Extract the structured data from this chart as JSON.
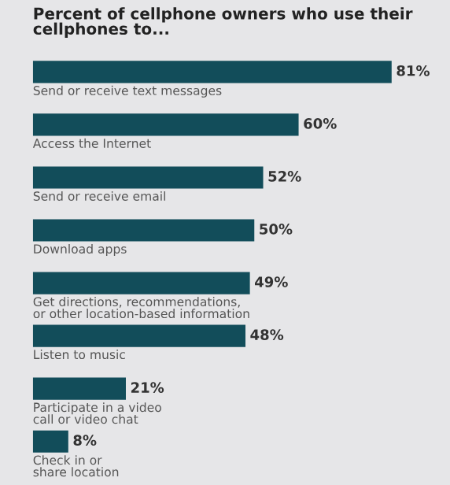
{
  "chart_data": {
    "type": "bar",
    "orientation": "horizontal",
    "title": "Percent of cellphone owners who use their\ncellphones to...",
    "categories": [
      "Send or receive text messages",
      "Access the Internet",
      "Send or receive email",
      "Download apps",
      "Get directions, recommendations,\nor other location-based information",
      "Listen to music",
      "Participate in a video\ncall or video chat",
      "Check in or\nshare location"
    ],
    "values": [
      81,
      60,
      52,
      50,
      49,
      48,
      21,
      8
    ],
    "value_labels": [
      "81%",
      "60%",
      "52%",
      "50%",
      "49%",
      "48%",
      "21%",
      "8%"
    ],
    "color": "#124d5a"
  }
}
